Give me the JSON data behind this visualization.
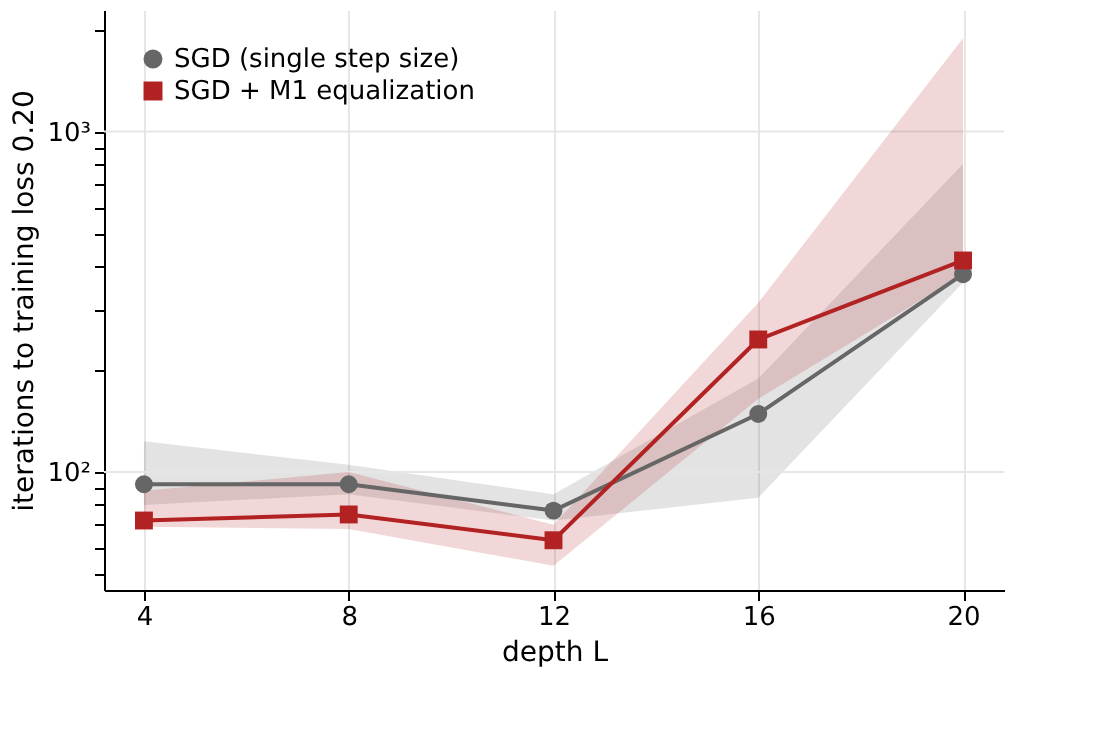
{
  "chart_data": {
    "type": "line",
    "xlabel": "depth L",
    "ylabel": "iterations to training loss 0.20",
    "x": [
      4,
      8,
      12,
      16,
      20
    ],
    "xlim": [
      3.22,
      20.8
    ],
    "xticks": [
      4,
      8,
      12,
      16,
      20
    ],
    "ylim": [
      45,
      2275
    ],
    "log": "y",
    "yticks": [
      {
        "value": 50,
        "label": null
      },
      {
        "value": 60,
        "label": null
      },
      {
        "value": 70,
        "label": null
      },
      {
        "value": 80,
        "label": null
      },
      {
        "value": 90,
        "label": null
      },
      {
        "value": 100,
        "label": "10²"
      },
      {
        "value": 200,
        "label": null
      },
      {
        "value": 300,
        "label": null
      },
      {
        "value": 400,
        "label": null
      },
      {
        "value": 500,
        "label": null
      },
      {
        "value": 600,
        "label": null
      },
      {
        "value": 700,
        "label": null
      },
      {
        "value": 800,
        "label": null
      },
      {
        "value": 900,
        "label": null
      },
      {
        "value": 1000,
        "label": "10³"
      },
      {
        "value": 2000,
        "label": null
      }
    ],
    "grid": true,
    "legend": "top left",
    "line_style": "solid",
    "series": [
      {
        "name": "SGD (single step size)",
        "color": "#666666",
        "marker": "circle",
        "values": [
          92,
          92,
          77,
          148,
          381
        ],
        "lower": [
          80,
          86,
          72,
          84,
          360
        ],
        "upper": [
          123,
          105,
          86,
          188,
          803
        ]
      },
      {
        "name": "SGD + M1 equalization",
        "color": "#b22222",
        "marker": "square",
        "values": [
          72,
          75,
          63,
          245,
          418
        ],
        "lower": [
          69,
          68,
          53,
          164,
          380
        ],
        "upper": [
          88,
          100,
          70,
          314,
          1880
        ]
      }
    ]
  }
}
